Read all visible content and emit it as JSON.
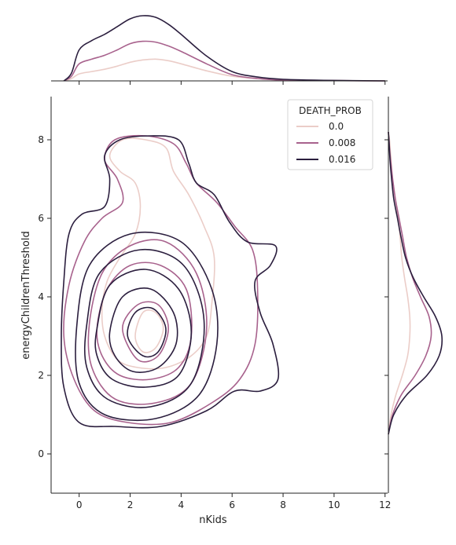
{
  "chart_data": {
    "type": "kde-joint",
    "xlabel": "nKids",
    "ylabel": "energyChildrenThreshold",
    "xlim": [
      -1.1,
      12.1
    ],
    "ylim": [
      -1.0,
      9.1
    ],
    "xticks": [
      0,
      2,
      4,
      6,
      8,
      10,
      12
    ],
    "yticks": [
      0,
      2,
      4,
      6,
      8
    ],
    "grid": false,
    "legend": {
      "title": "DEATH_PROB",
      "placement": "top-right",
      "entries": [
        "0.0",
        "0.008",
        "0.016"
      ]
    },
    "series": [
      {
        "name": "0.0",
        "color": "#ebcdc8",
        "center": [
          2.7,
          3.4
        ],
        "x_marginal": {
          "x": [
            -0.6,
            -0.3,
            0,
            0.5,
            1,
            1.5,
            2,
            2.5,
            3,
            3.5,
            4,
            5,
            6,
            7,
            8,
            10,
            12
          ],
          "y": [
            0,
            0.03,
            0.09,
            0.12,
            0.15,
            0.19,
            0.24,
            0.27,
            0.28,
            0.26,
            0.22,
            0.13,
            0.06,
            0.03,
            0.015,
            0.005,
            0
          ]
        },
        "y_marginal": {
          "y": [
            0.5,
            1,
            1.5,
            2,
            2.5,
            3,
            3.5,
            4,
            4.5,
            5,
            5.5,
            6,
            6.5,
            7,
            7.5,
            8,
            8.2
          ],
          "v": [
            0,
            0.05,
            0.14,
            0.26,
            0.36,
            0.4,
            0.4,
            0.36,
            0.3,
            0.25,
            0.22,
            0.18,
            0.13,
            0.08,
            0.05,
            0.02,
            0
          ]
        },
        "contours": [
          [
            [
              2.2,
              3.0
            ],
            [
              2.5,
              3.6
            ],
            [
              3.0,
              3.6
            ],
            [
              3.3,
              3.2
            ],
            [
              3.0,
              2.7
            ],
            [
              2.5,
              2.6
            ]
          ],
          [
            [
              1.2,
              7.6
            ],
            [
              1.7,
              8.0
            ],
            [
              2.6,
              8.0
            ],
            [
              3.4,
              7.8
            ],
            [
              3.7,
              7.2
            ],
            [
              4.3,
              6.6
            ],
            [
              4.9,
              5.8
            ],
            [
              5.3,
              5.0
            ],
            [
              5.2,
              3.8
            ],
            [
              5.0,
              3.0
            ],
            [
              4.4,
              2.5
            ],
            [
              3.4,
              2.2
            ],
            [
              2.3,
              2.2
            ],
            [
              1.5,
              2.4
            ],
            [
              1.0,
              3.0
            ],
            [
              0.9,
              3.7
            ],
            [
              1.1,
              4.4
            ],
            [
              1.6,
              5.0
            ],
            [
              2.2,
              5.6
            ],
            [
              2.4,
              6.3
            ],
            [
              2.2,
              6.9
            ],
            [
              1.6,
              7.2
            ]
          ]
        ]
      },
      {
        "name": "0.008",
        "color": "#a8628d",
        "center": [
          2.6,
          3.2
        ],
        "x_marginal": {
          "x": [
            -0.6,
            -0.3,
            0,
            0.5,
            1,
            1.5,
            2,
            2.5,
            3,
            3.5,
            4,
            5,
            6,
            7,
            8,
            10,
            12
          ],
          "y": [
            0,
            0.06,
            0.22,
            0.28,
            0.33,
            0.4,
            0.48,
            0.51,
            0.5,
            0.45,
            0.38,
            0.22,
            0.08,
            0.03,
            0.01,
            0.004,
            0
          ]
        },
        "y_marginal": {
          "y": [
            0.5,
            1,
            1.5,
            2,
            2.5,
            3,
            3.5,
            4,
            4.5,
            5,
            5.5,
            6,
            6.5,
            7,
            7.5,
            8,
            8.2
          ],
          "v": [
            0,
            0.08,
            0.24,
            0.5,
            0.7,
            0.8,
            0.76,
            0.6,
            0.45,
            0.34,
            0.27,
            0.2,
            0.13,
            0.08,
            0.04,
            0.01,
            0
          ]
        },
        "contours": [
          [
            [
              1.7,
              3.2
            ],
            [
              2.3,
              3.8
            ],
            [
              3.1,
              3.8
            ],
            [
              3.5,
              3.2
            ],
            [
              3.1,
              2.5
            ],
            [
              2.3,
              2.4
            ]
          ],
          [
            [
              0.7,
              3.2
            ],
            [
              1.1,
              4.2
            ],
            [
              2.0,
              4.8
            ],
            [
              3.2,
              4.8
            ],
            [
              4.2,
              4.2
            ],
            [
              4.4,
              3.0
            ],
            [
              3.9,
              2.2
            ],
            [
              2.8,
              1.9
            ],
            [
              1.6,
              2.0
            ],
            [
              0.9,
              2.5
            ]
          ],
          [
            [
              0.4,
              3.3
            ],
            [
              0.9,
              4.6
            ],
            [
              2.0,
              5.3
            ],
            [
              3.4,
              5.4
            ],
            [
              4.6,
              4.6
            ],
            [
              5.0,
              3.2
            ],
            [
              4.4,
              1.8
            ],
            [
              3.0,
              1.3
            ],
            [
              1.4,
              1.4
            ],
            [
              0.5,
              2.2
            ]
          ],
          [
            [
              1.0,
              7.5
            ],
            [
              1.4,
              8.0
            ],
            [
              2.6,
              8.1
            ],
            [
              3.7,
              7.9
            ],
            [
              4.2,
              7.4
            ],
            [
              4.6,
              6.9
            ],
            [
              5.4,
              6.4
            ],
            [
              6.1,
              5.8
            ],
            [
              6.8,
              5.2
            ],
            [
              7.0,
              4.2
            ],
            [
              6.9,
              2.8
            ],
            [
              6.3,
              1.9
            ],
            [
              5.2,
              1.3
            ],
            [
              3.6,
              0.8
            ],
            [
              1.9,
              0.8
            ],
            [
              0.6,
              1.1
            ],
            [
              -0.2,
              1.9
            ],
            [
              -0.6,
              3.0
            ],
            [
              -0.4,
              4.3
            ],
            [
              0.2,
              5.4
            ],
            [
              0.9,
              6.0
            ],
            [
              1.7,
              6.4
            ],
            [
              1.5,
              7.0
            ]
          ]
        ]
      },
      {
        "name": "0.016",
        "color": "#2b1e3e",
        "center": [
          2.5,
          3.0
        ],
        "x_marginal": {
          "x": [
            -0.6,
            -0.3,
            0,
            0.5,
            1,
            1.5,
            2,
            2.5,
            3,
            3.5,
            4,
            5,
            6,
            7,
            8,
            10,
            12
          ],
          "y": [
            0,
            0.1,
            0.4,
            0.52,
            0.6,
            0.7,
            0.8,
            0.84,
            0.82,
            0.73,
            0.6,
            0.32,
            0.12,
            0.05,
            0.02,
            0.006,
            0
          ]
        },
        "y_marginal": {
          "y": [
            0.5,
            1,
            1.5,
            2,
            2.5,
            3,
            3.5,
            4,
            4.5,
            5,
            5.5,
            6,
            6.5,
            7,
            7.5,
            8,
            8.2
          ],
          "v": [
            0,
            0.1,
            0.34,
            0.72,
            0.95,
            1.0,
            0.88,
            0.66,
            0.46,
            0.32,
            0.24,
            0.17,
            0.1,
            0.06,
            0.03,
            0.01,
            0
          ]
        },
        "contours": [
          [
            [
              1.9,
              3.0
            ],
            [
              2.2,
              3.6
            ],
            [
              2.9,
              3.7
            ],
            [
              3.4,
              3.2
            ],
            [
              3.1,
              2.6
            ],
            [
              2.5,
              2.5
            ]
          ],
          [
            [
              1.2,
              3.1
            ],
            [
              1.7,
              4.0
            ],
            [
              2.8,
              4.2
            ],
            [
              3.7,
              3.6
            ],
            [
              3.8,
              2.8
            ],
            [
              3.1,
              2.2
            ],
            [
              2.1,
              2.1
            ],
            [
              1.4,
              2.5
            ]
          ],
          [
            [
              0.7,
              3.2
            ],
            [
              1.2,
              4.3
            ],
            [
              2.6,
              4.7
            ],
            [
              3.9,
              4.2
            ],
            [
              4.4,
              3.1
            ],
            [
              3.9,
              2.0
            ],
            [
              2.6,
              1.7
            ],
            [
              1.3,
              1.9
            ],
            [
              0.7,
              2.5
            ]
          ],
          [
            [
              0.3,
              3.3
            ],
            [
              0.8,
              4.6
            ],
            [
              2.4,
              5.2
            ],
            [
              4.1,
              4.8
            ],
            [
              4.9,
              3.4
            ],
            [
              4.4,
              1.8
            ],
            [
              2.8,
              1.2
            ],
            [
              1.1,
              1.4
            ],
            [
              0.3,
              2.2
            ]
          ],
          [
            [
              -0.1,
              3.2
            ],
            [
              0.4,
              4.8
            ],
            [
              2.0,
              5.6
            ],
            [
              4.0,
              5.4
            ],
            [
              5.2,
              4.2
            ],
            [
              5.4,
              2.8
            ],
            [
              4.7,
              1.5
            ],
            [
              3.0,
              0.9
            ],
            [
              1.0,
              1.0
            ],
            [
              0.0,
              1.8
            ]
          ],
          [
            [
              1.0,
              7.6
            ],
            [
              1.6,
              8.0
            ],
            [
              2.8,
              8.1
            ],
            [
              3.9,
              8.0
            ],
            [
              4.3,
              7.4
            ],
            [
              4.6,
              6.9
            ],
            [
              5.3,
              6.6
            ],
            [
              5.9,
              5.9
            ],
            [
              6.6,
              5.4
            ],
            [
              7.7,
              5.3
            ],
            [
              7.5,
              4.8
            ],
            [
              6.9,
              4.4
            ],
            [
              7.1,
              3.6
            ],
            [
              7.6,
              2.8
            ],
            [
              7.8,
              1.9
            ],
            [
              7.1,
              1.6
            ],
            [
              6.1,
              1.6
            ],
            [
              5.0,
              1.1
            ],
            [
              3.2,
              0.7
            ],
            [
              1.4,
              0.7
            ],
            [
              0.0,
              0.8
            ],
            [
              -0.6,
              1.7
            ],
            [
              -0.7,
              3.0
            ],
            [
              -0.6,
              4.4
            ],
            [
              -0.4,
              5.6
            ],
            [
              0.1,
              6.1
            ],
            [
              1.0,
              6.3
            ],
            [
              1.2,
              7.0
            ]
          ]
        ]
      }
    ]
  }
}
